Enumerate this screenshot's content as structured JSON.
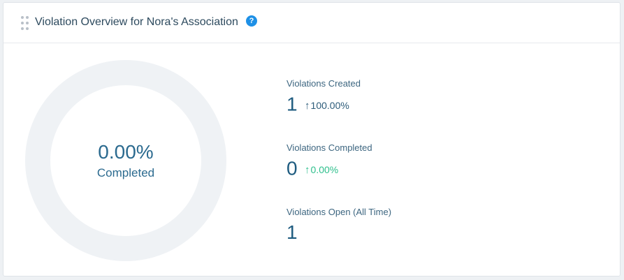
{
  "widget": {
    "title": "Violation Overview for Nora's Association",
    "help_icon": "question-circle-icon",
    "help_glyph": "?",
    "drag_handle_icon": "drag-handle-icon"
  },
  "donut": {
    "completed_fraction": 0.0,
    "percent_text": "0.00%",
    "label": "Completed",
    "track_color": "#eff2f5",
    "fill_color": "#2b6a8f"
  },
  "stats": [
    {
      "label": "Violations Created",
      "value": "1",
      "change": "100.00%",
      "change_icon": "arrow-up-icon",
      "change_glyph": "↑",
      "change_color": "#2d5c7a"
    },
    {
      "label": "Violations Completed",
      "value": "0",
      "change": "0.00%",
      "change_icon": "arrow-up-icon",
      "change_glyph": "↑",
      "change_color": "#2ebf8c"
    },
    {
      "label": "Violations Open (All Time)",
      "value": "1"
    }
  ]
}
